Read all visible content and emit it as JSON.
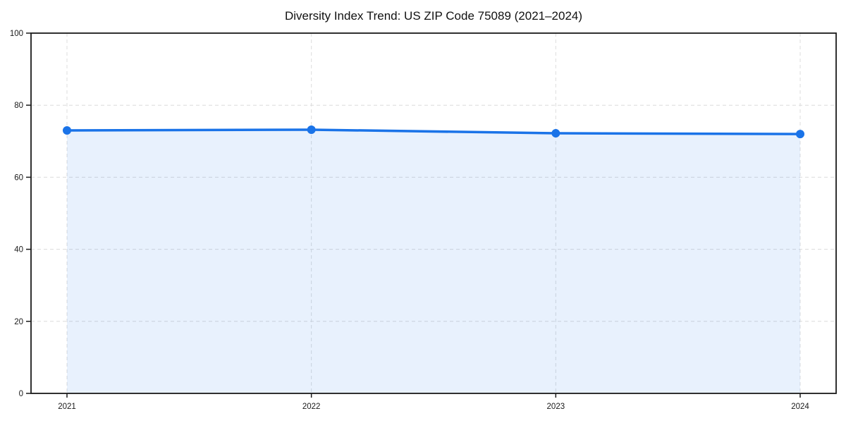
{
  "chart_data": {
    "type": "area",
    "title": "Diversity Index Trend: US ZIP Code 75089 (2021–2024)",
    "categories": [
      "2021",
      "2022",
      "2023",
      "2024"
    ],
    "series": [
      {
        "name": "Diversity Index",
        "values": [
          73.0,
          73.2,
          72.2,
          72.0
        ]
      }
    ],
    "xlabel": "",
    "ylabel": "",
    "ylim": [
      0,
      100
    ],
    "yticks": [
      0,
      20,
      40,
      60,
      80,
      100
    ],
    "grid": true,
    "grid_style": "dashed",
    "legend_position": "none",
    "marker": "circle",
    "colors": {
      "line": "#1a73e8",
      "marker": "#1a73e8",
      "fill_rgba": "rgba(26,115,232,0.10)",
      "grid": "#dcdcdc",
      "axis": "#1a1a1a",
      "tick_text": "#1a1a1a",
      "title_text": "#111111",
      "background": "#ffffff"
    }
  }
}
